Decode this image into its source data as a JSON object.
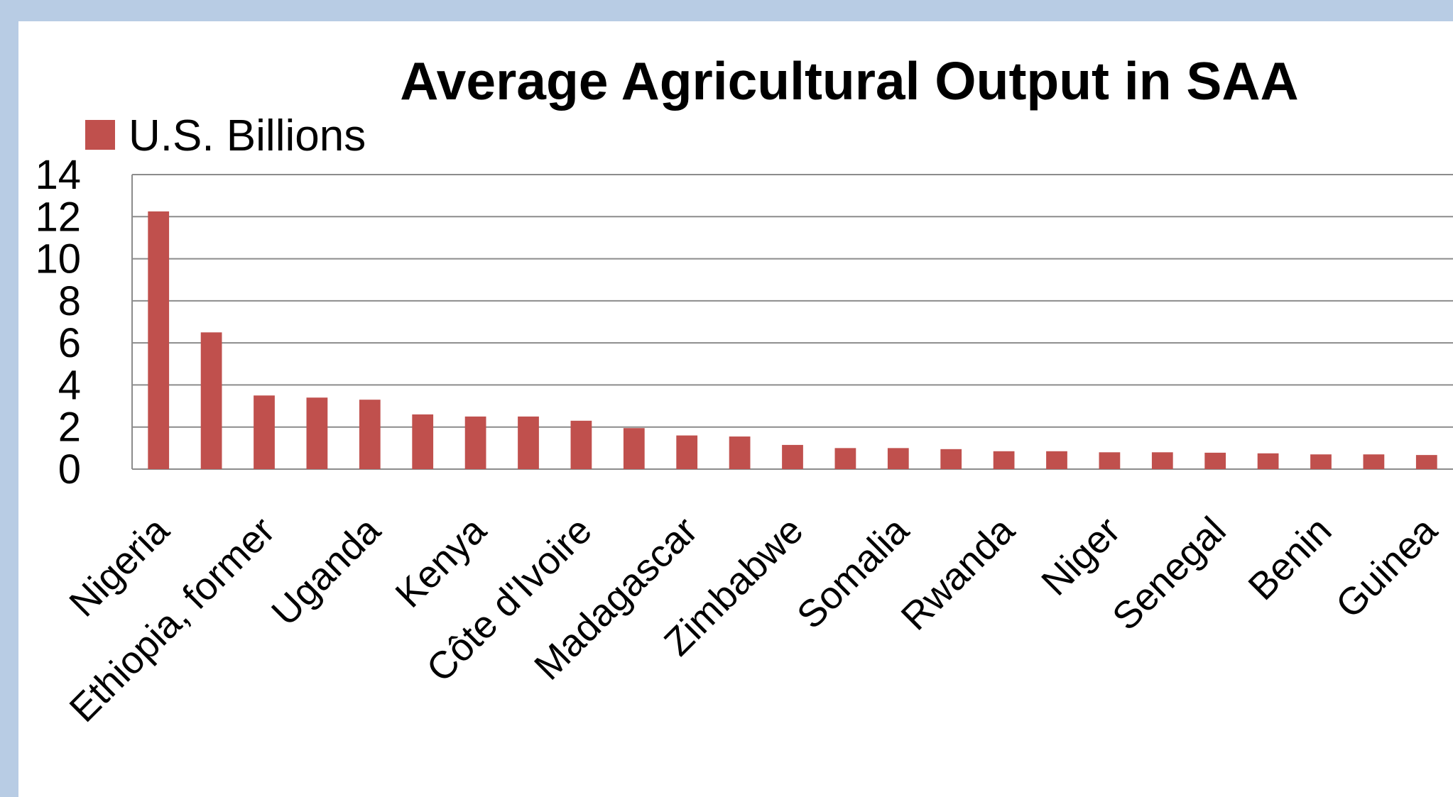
{
  "chart_data": {
    "type": "bar",
    "title": "Average Agricultural Output in SAA",
    "series": [
      {
        "name": "U.S. Billions",
        "color": "#c0504d",
        "values": [
          12.25,
          6.5,
          3.5,
          3.4,
          3.3,
          2.6,
          2.5,
          2.5,
          2.3,
          1.95,
          1.6,
          1.55,
          1.15,
          1.0,
          1.0,
          0.95,
          0.85,
          0.85,
          0.8,
          0.8,
          0.78,
          0.75,
          0.7,
          0.7,
          0.67
        ]
      }
    ],
    "categories": [
      "Nigeria",
      "",
      "Ethiopia, former",
      "",
      "Uganda",
      "",
      "Kenya",
      "",
      "Côte d'Ivoire",
      "",
      "Madagascar",
      "",
      "Zimbabwe",
      "",
      "Somalia",
      "",
      "Rwanda",
      "",
      "Niger",
      "",
      "Senegal",
      "",
      "Benin",
      "",
      "Guinea"
    ],
    "ylim": [
      0,
      14
    ],
    "yticks": [
      "0",
      "2",
      "4",
      "6",
      "8",
      "10",
      "12",
      "14"
    ],
    "grid": true,
    "legend": "top-left",
    "xlabel": "",
    "ylabel": ""
  },
  "colors": {
    "background": "#b8cce4",
    "plot_background": "#ffffff",
    "bar": "#c0504d",
    "gridline": "#8c8c8c"
  }
}
